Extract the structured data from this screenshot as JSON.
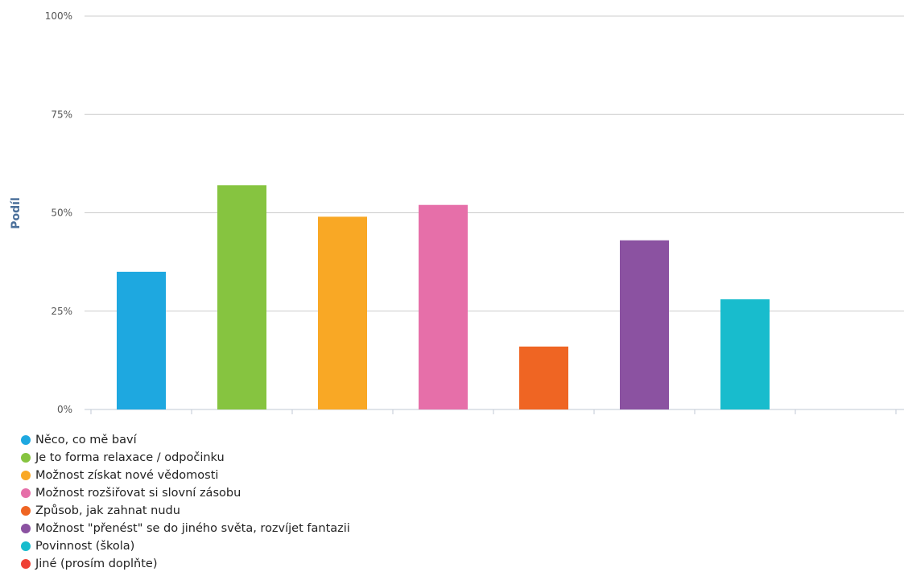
{
  "chart_data": {
    "type": "bar",
    "ylabel": "Podíl",
    "xlabel": "",
    "title": "",
    "ylim": [
      0,
      100
    ],
    "yticks": [
      0,
      25,
      50,
      75,
      100
    ],
    "ytick_labels": [
      "0%",
      "25%",
      "50%",
      "75%",
      "100%"
    ],
    "grid": true,
    "legend_position": "bottom-left",
    "categories": [
      "Něco, co mě baví",
      "Je to forma relaxace / odpočinku",
      "Možnost získat nové vědomosti",
      "Možnost rozšiřovat si slovní zásobu",
      "Způsob, jak zahnat nudu",
      "Možnost \"přenést\" se do jiného světa, rozvíjet fantazii",
      "Povinnost (škola)",
      "Jiné (prosím doplňte)"
    ],
    "values": [
      35,
      57,
      49,
      52,
      16,
      43,
      28,
      0
    ],
    "colors": [
      "#1ea8e0",
      "#86c440",
      "#f9a825",
      "#e66fa9",
      "#ef6523",
      "#8b52a1",
      "#18bccd",
      "#ef4136"
    ]
  }
}
